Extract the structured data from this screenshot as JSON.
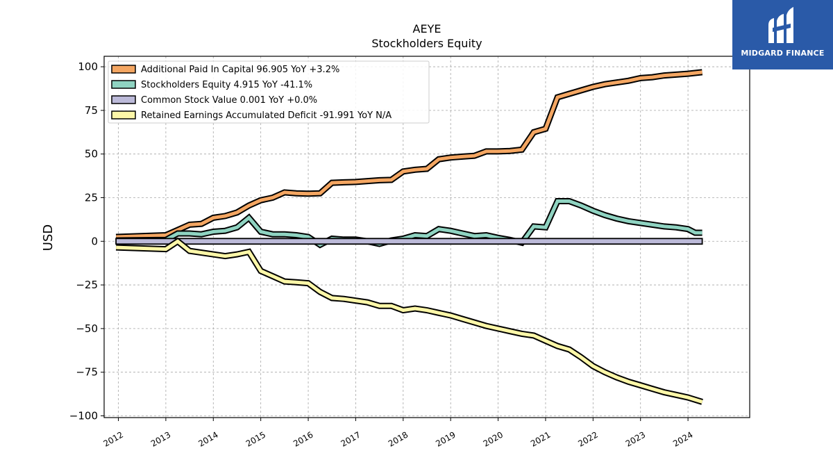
{
  "chart_data": {
    "type": "line",
    "title": "AEYE",
    "subtitle": "Stockholders  Equity",
    "ylabel": "USD",
    "xlabel": "",
    "xlim": [
      2011.7,
      2025.3
    ],
    "ylim": [
      -101,
      106
    ],
    "yticks": [
      100,
      75,
      50,
      25,
      0,
      -25,
      -50,
      -75,
      -100
    ],
    "ytick_labels": [
      "100",
      "75",
      "50",
      "25",
      "0",
      "−25",
      "−50",
      "−75",
      "−100"
    ],
    "xticks": [
      "2012",
      "2013",
      "2014",
      "2015",
      "2016",
      "2017",
      "2018",
      "2019",
      "2020",
      "2021",
      "2022",
      "2023",
      "2024"
    ],
    "grid": true,
    "legend_position": "top-left",
    "series": [
      {
        "name": "Additional Paid In Capital  96.905 YoY +3.2%",
        "color": "#f4a662",
        "kind": "line",
        "points": [
          [
            2011.95,
            2.5
          ],
          [
            2013.0,
            3.5
          ],
          [
            2013.25,
            6.5
          ],
          [
            2013.5,
            9.5
          ],
          [
            2013.75,
            10.0
          ],
          [
            2014.0,
            13.5
          ],
          [
            2014.25,
            14.5
          ],
          [
            2014.5,
            16.5
          ],
          [
            2014.75,
            20.5
          ],
          [
            2015.0,
            23.5
          ],
          [
            2015.25,
            25.0
          ],
          [
            2015.5,
            28.0
          ],
          [
            2015.75,
            27.5
          ],
          [
            2016.0,
            27.3
          ],
          [
            2016.25,
            27.5
          ],
          [
            2016.5,
            33.5
          ],
          [
            2016.75,
            33.8
          ],
          [
            2017.0,
            34.0
          ],
          [
            2017.25,
            34.5
          ],
          [
            2017.5,
            35.0
          ],
          [
            2017.75,
            35.2
          ],
          [
            2018.0,
            40.0
          ],
          [
            2018.25,
            41.0
          ],
          [
            2018.5,
            41.5
          ],
          [
            2018.75,
            47.0
          ],
          [
            2019.0,
            48.0
          ],
          [
            2019.25,
            48.5
          ],
          [
            2019.5,
            49.0
          ],
          [
            2019.75,
            51.5
          ],
          [
            2020.0,
            51.5
          ],
          [
            2020.25,
            51.8
          ],
          [
            2020.5,
            52.5
          ],
          [
            2020.75,
            62.5
          ],
          [
            2021.0,
            64.5
          ],
          [
            2021.25,
            82.5
          ],
          [
            2021.5,
            84.5
          ],
          [
            2021.75,
            86.5
          ],
          [
            2022.0,
            88.5
          ],
          [
            2022.25,
            90.0
          ],
          [
            2022.5,
            91.0
          ],
          [
            2022.75,
            92.0
          ],
          [
            2023.0,
            93.5
          ],
          [
            2023.25,
            94.0
          ],
          [
            2023.5,
            95.0
          ],
          [
            2023.75,
            95.5
          ],
          [
            2024.0,
            96.0
          ],
          [
            2024.3,
            96.9
          ]
        ]
      },
      {
        "name": "Stockholders Equity  4.915 YoY -41.1%",
        "color": "#8fd3c1",
        "kind": "line",
        "points": [
          [
            2011.95,
            0.5
          ],
          [
            2013.0,
            0.8
          ],
          [
            2013.25,
            4.5
          ],
          [
            2013.5,
            4.5
          ],
          [
            2013.75,
            4.0
          ],
          [
            2014.0,
            5.5
          ],
          [
            2014.25,
            6.0
          ],
          [
            2014.5,
            8.0
          ],
          [
            2014.75,
            13.5
          ],
          [
            2015.0,
            5.5
          ],
          [
            2015.25,
            4.0
          ],
          [
            2015.5,
            4.0
          ],
          [
            2015.75,
            3.5
          ],
          [
            2016.0,
            2.5
          ],
          [
            2016.25,
            -2.0
          ],
          [
            2016.5,
            1.5
          ],
          [
            2016.75,
            1.0
          ],
          [
            2017.0,
            1.0
          ],
          [
            2017.25,
            0.0
          ],
          [
            2017.5,
            -1.5
          ],
          [
            2017.75,
            0.5
          ],
          [
            2018.0,
            1.5
          ],
          [
            2018.25,
            3.5
          ],
          [
            2018.5,
            3.0
          ],
          [
            2018.75,
            7.0
          ],
          [
            2019.0,
            6.0
          ],
          [
            2019.25,
            4.5
          ],
          [
            2019.5,
            3.0
          ],
          [
            2019.75,
            3.5
          ],
          [
            2020.0,
            2.0
          ],
          [
            2020.25,
            0.8
          ],
          [
            2020.5,
            -0.8
          ],
          [
            2020.75,
            8.5
          ],
          [
            2021.0,
            8.0
          ],
          [
            2021.25,
            23.0
          ],
          [
            2021.5,
            23.0
          ],
          [
            2021.75,
            20.5
          ],
          [
            2022.0,
            17.5
          ],
          [
            2022.25,
            15.0
          ],
          [
            2022.5,
            13.0
          ],
          [
            2022.75,
            11.5
          ],
          [
            2023.0,
            10.5
          ],
          [
            2023.25,
            9.5
          ],
          [
            2023.5,
            8.5
          ],
          [
            2023.75,
            8.0
          ],
          [
            2024.0,
            7.0
          ],
          [
            2024.15,
            4.9
          ],
          [
            2024.3,
            4.9
          ]
        ]
      },
      {
        "name": "Common Stock Value  0.001 YoY +0.0%",
        "color": "#bcbad9",
        "kind": "band",
        "points": [
          [
            2011.95,
            0.001
          ],
          [
            2024.3,
            0.001
          ]
        ]
      },
      {
        "name": "Retained Earnings Accumulated Deficit  -91.991 YoY N/A",
        "color": "#fdf7a8",
        "kind": "line",
        "points": [
          [
            2011.95,
            -3.5
          ],
          [
            2013.0,
            -4.5
          ],
          [
            2013.25,
            0.0
          ],
          [
            2013.5,
            -5.5
          ],
          [
            2013.75,
            -6.5
          ],
          [
            2014.0,
            -7.5
          ],
          [
            2014.25,
            -8.5
          ],
          [
            2014.5,
            -7.5
          ],
          [
            2014.75,
            -6.0
          ],
          [
            2015.0,
            -17.0
          ],
          [
            2015.25,
            -20.0
          ],
          [
            2015.5,
            -23.0
          ],
          [
            2015.75,
            -23.5
          ],
          [
            2016.0,
            -24.0
          ],
          [
            2016.25,
            -29.0
          ],
          [
            2016.5,
            -32.5
          ],
          [
            2016.75,
            -33.0
          ],
          [
            2017.0,
            -34.0
          ],
          [
            2017.25,
            -35.0
          ],
          [
            2017.5,
            -37.0
          ],
          [
            2017.75,
            -37.0
          ],
          [
            2018.0,
            -39.5
          ],
          [
            2018.25,
            -38.5
          ],
          [
            2018.5,
            -39.5
          ],
          [
            2018.75,
            -41.0
          ],
          [
            2019.0,
            -42.5
          ],
          [
            2019.25,
            -44.5
          ],
          [
            2019.5,
            -46.5
          ],
          [
            2019.75,
            -48.5
          ],
          [
            2020.0,
            -50.0
          ],
          [
            2020.25,
            -51.5
          ],
          [
            2020.5,
            -53.0
          ],
          [
            2020.75,
            -54.0
          ],
          [
            2021.0,
            -57.0
          ],
          [
            2021.25,
            -60.0
          ],
          [
            2021.5,
            -62.0
          ],
          [
            2021.75,
            -66.5
          ],
          [
            2022.0,
            -71.5
          ],
          [
            2022.25,
            -75.0
          ],
          [
            2022.5,
            -78.0
          ],
          [
            2022.75,
            -80.5
          ],
          [
            2023.0,
            -82.5
          ],
          [
            2023.25,
            -84.5
          ],
          [
            2023.5,
            -86.5
          ],
          [
            2023.75,
            -88.0
          ],
          [
            2024.0,
            -89.5
          ],
          [
            2024.3,
            -92.0
          ]
        ]
      }
    ]
  },
  "logo": {
    "text": "MIDGARD FINANCE",
    "background": "#2a5aa8"
  }
}
